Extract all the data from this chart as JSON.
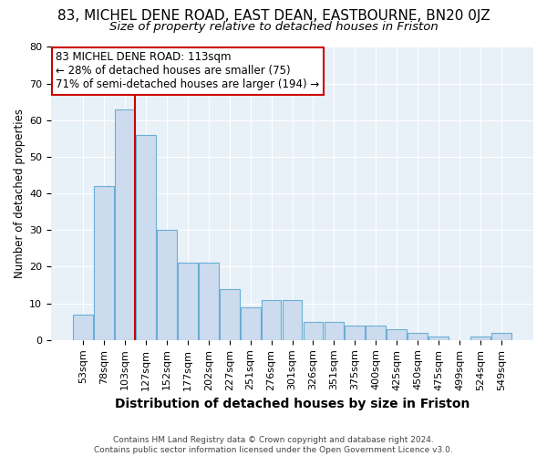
{
  "title_line1": "83, MICHEL DENE ROAD, EAST DEAN, EASTBOURNE, BN20 0JZ",
  "title_line2": "Size of property relative to detached houses in Friston",
  "xlabel": "Distribution of detached houses by size in Friston",
  "ylabel": "Number of detached properties",
  "categories": [
    "53sqm",
    "78sqm",
    "103sqm",
    "127sqm",
    "152sqm",
    "177sqm",
    "202sqm",
    "227sqm",
    "251sqm",
    "276sqm",
    "301sqm",
    "326sqm",
    "351sqm",
    "375sqm",
    "400sqm",
    "425sqm",
    "450sqm",
    "475sqm",
    "499sqm",
    "524sqm",
    "549sqm"
  ],
  "bar_values": [
    7,
    42,
    63,
    56,
    30,
    21,
    21,
    14,
    9,
    11,
    11,
    5,
    5,
    4,
    4,
    3,
    2,
    1,
    0,
    1,
    2
  ],
  "bar_color": "#ccdcee",
  "bar_edge_color": "#6aaed6",
  "vline_pos": 2.5,
  "vline_color": "#cc0000",
  "annotation_line1": "83 MICHEL DENE ROAD: 113sqm",
  "annotation_line2": "← 28% of detached houses are smaller (75)",
  "annotation_line3": "71% of semi-detached houses are larger (194) →",
  "ylim_max": 80,
  "yticks": [
    0,
    10,
    20,
    30,
    40,
    50,
    60,
    70,
    80
  ],
  "footer_line1": "Contains HM Land Registry data © Crown copyright and database right 2024.",
  "footer_line2": "Contains public sector information licensed under the Open Government Licence v3.0.",
  "plot_bg_color": "#e8f0f8",
  "grid_color": "#ffffff",
  "title1_fontsize": 11,
  "title2_fontsize": 9.5,
  "xlabel_fontsize": 10,
  "ylabel_fontsize": 8.5,
  "tick_fontsize": 8,
  "annot_fontsize": 8.5,
  "footer_fontsize": 6.5
}
